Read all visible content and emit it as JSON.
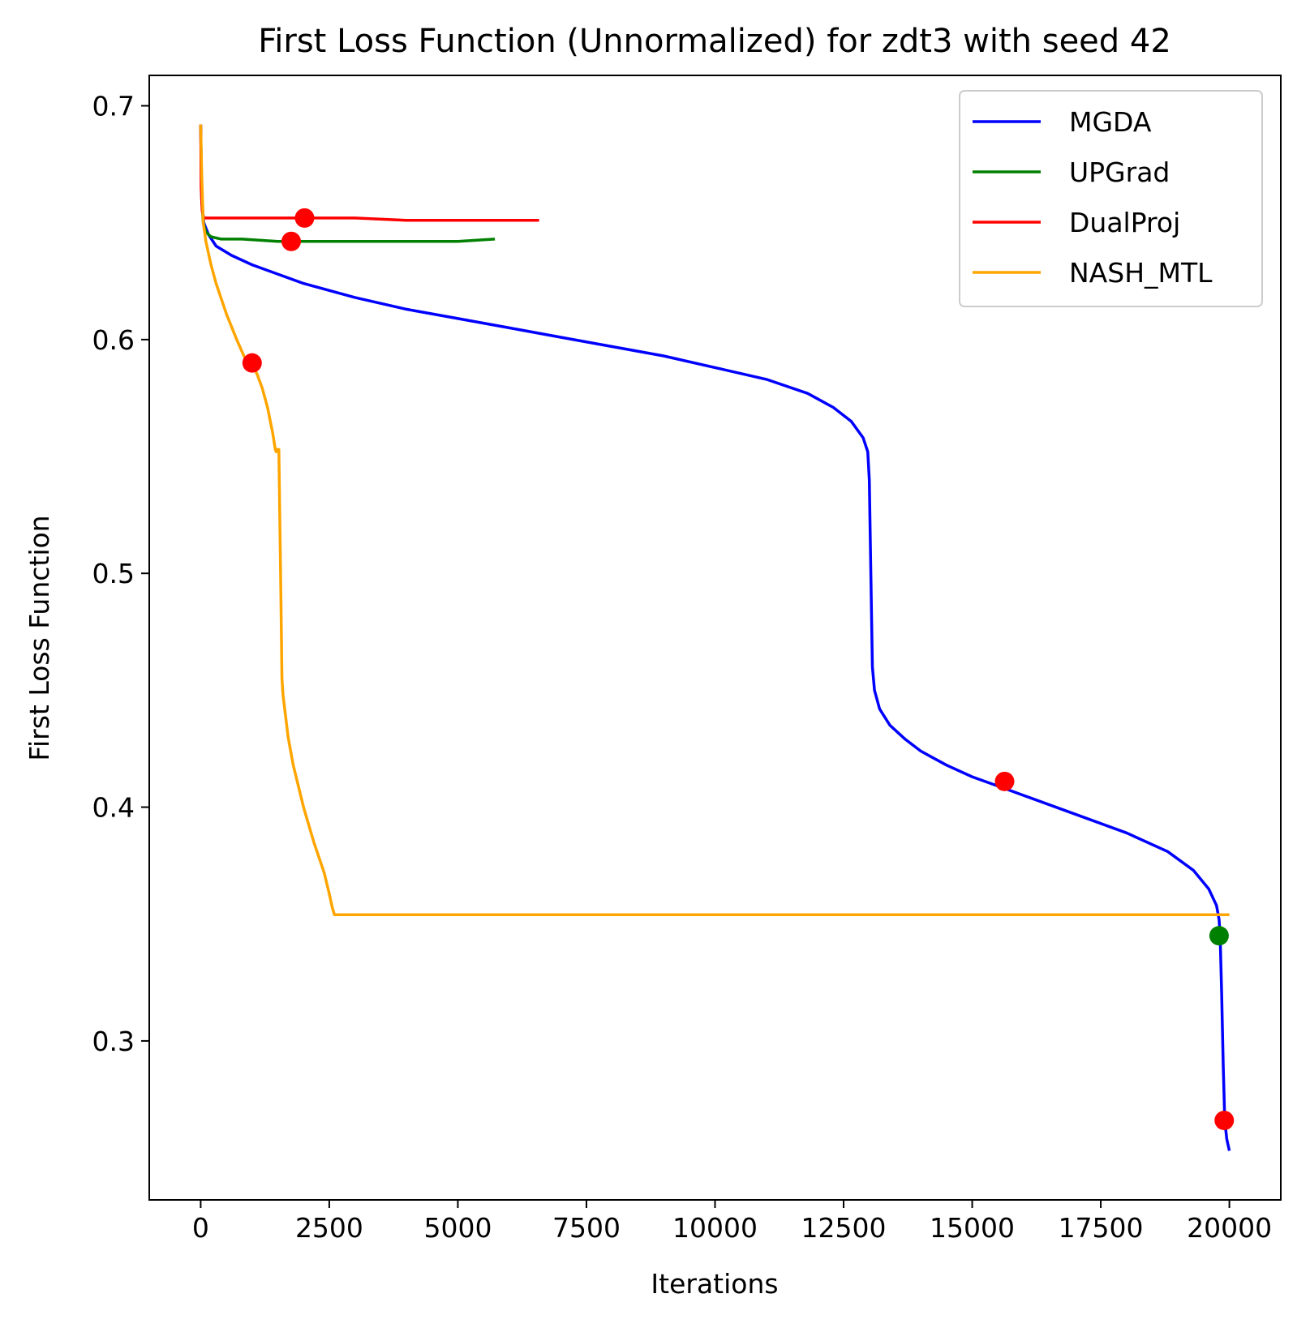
{
  "chart_data": {
    "type": "line",
    "title": "First Loss Function (Unnormalized) for zdt3 with seed 42",
    "xlabel": "Iterations",
    "ylabel": "First Loss Function",
    "xlim": [
      -1000,
      21000
    ],
    "ylim": [
      0.232,
      0.713
    ],
    "x_ticks": [
      0,
      2500,
      5000,
      7500,
      10000,
      12500,
      15000,
      17500,
      20000
    ],
    "x_tick_labels": [
      "0",
      "2500",
      "5000",
      "7500",
      "10000",
      "12500",
      "15000",
      "17500",
      "20000"
    ],
    "y_ticks": [
      0.3,
      0.4,
      0.5,
      0.6,
      0.7
    ],
    "y_tick_labels": [
      "0.3",
      "0.4",
      "0.5",
      "0.6",
      "0.7"
    ],
    "grid": false,
    "legend_position": "upper right",
    "series": [
      {
        "name": "MGDA",
        "color": "#0000ff",
        "x": [
          0,
          20,
          60,
          150,
          300,
          600,
          1000,
          1500,
          2000,
          3000,
          4000,
          5000,
          6000,
          7000,
          8000,
          9000,
          10000,
          11000,
          11800,
          12300,
          12650,
          12880,
          12970,
          13000,
          13030,
          13060,
          13100,
          13200,
          13400,
          13700,
          14000,
          14500,
          15000,
          15630,
          16000,
          17000,
          18000,
          18800,
          19300,
          19600,
          19750,
          19800,
          19820,
          19850,
          19880,
          19910,
          19950,
          20000
        ],
        "y": [
          0.692,
          0.66,
          0.65,
          0.645,
          0.64,
          0.636,
          0.632,
          0.628,
          0.624,
          0.618,
          0.613,
          0.609,
          0.605,
          0.601,
          0.597,
          0.593,
          0.588,
          0.583,
          0.577,
          0.571,
          0.565,
          0.558,
          0.552,
          0.54,
          0.5,
          0.46,
          0.45,
          0.442,
          0.435,
          0.429,
          0.424,
          0.418,
          0.413,
          0.408,
          0.405,
          0.397,
          0.389,
          0.381,
          0.373,
          0.365,
          0.358,
          0.352,
          0.345,
          0.32,
          0.29,
          0.266,
          0.258,
          0.253
        ]
      },
      {
        "name": "UPGrad",
        "color": "#008000",
        "x": [
          0,
          20,
          50,
          100,
          200,
          400,
          800,
          1500,
          2500,
          4000,
          5000,
          5720
        ],
        "y": [
          0.692,
          0.66,
          0.65,
          0.646,
          0.644,
          0.643,
          0.643,
          0.642,
          0.642,
          0.642,
          0.642,
          0.643
        ]
      },
      {
        "name": "DualProj",
        "color": "#ff0000",
        "x": [
          0,
          10,
          30,
          60,
          100,
          500,
          1000,
          2000,
          3000,
          4000,
          5000,
          6000,
          6580
        ],
        "y": [
          0.692,
          0.665,
          0.655,
          0.652,
          0.652,
          0.652,
          0.652,
          0.652,
          0.652,
          0.651,
          0.651,
          0.651,
          0.651
        ]
      },
      {
        "name": "NASH_MTL",
        "color": "#ffa500",
        "x": [
          0,
          20,
          50,
          100,
          200,
          300,
          500,
          700,
          900,
          990,
          1100,
          1200,
          1300,
          1400,
          1450,
          1470,
          1480,
          1520,
          1540,
          1560,
          1580,
          1600,
          1700,
          1800,
          2000,
          2200,
          2400,
          2500,
          2560,
          2600,
          2620,
          3000,
          5000,
          10000,
          15000,
          19000,
          20000
        ],
        "y": [
          0.692,
          0.67,
          0.65,
          0.642,
          0.632,
          0.624,
          0.611,
          0.6,
          0.59,
          0.59,
          0.585,
          0.579,
          0.571,
          0.56,
          0.553,
          0.552,
          0.553,
          0.553,
          0.52,
          0.49,
          0.455,
          0.448,
          0.43,
          0.418,
          0.4,
          0.385,
          0.372,
          0.363,
          0.357,
          0.354,
          0.354,
          0.354,
          0.354,
          0.354,
          0.354,
          0.354,
          0.354
        ]
      }
    ],
    "markers": [
      {
        "x": 1000,
        "y": 0.59,
        "color": "#ff0000"
      },
      {
        "x": 1760,
        "y": 0.642,
        "color": "#ff0000"
      },
      {
        "x": 2020,
        "y": 0.652,
        "color": "#ff0000"
      },
      {
        "x": 15630,
        "y": 0.411,
        "color": "#ff0000"
      },
      {
        "x": 19800,
        "y": 0.345,
        "color": "#008000"
      },
      {
        "x": 19900,
        "y": 0.266,
        "color": "#ff0000"
      }
    ]
  }
}
